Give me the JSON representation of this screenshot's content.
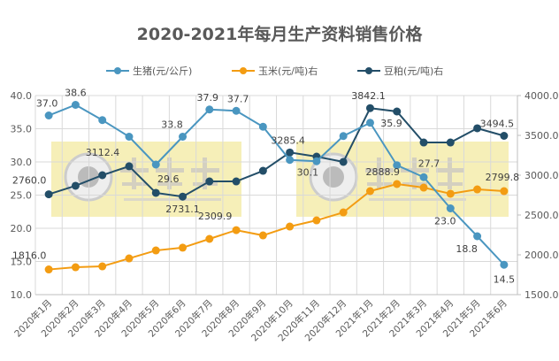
{
  "chart_data": {
    "type": "line",
    "title": "2020-2021年每月生产资料销售价格",
    "categories": [
      "2020年1月",
      "2020年2月",
      "2020年3月",
      "2020年4月",
      "2020年5月",
      "2020年6月",
      "2020年7月",
      "2020年8月",
      "2020年9月",
      "2020年10月",
      "2020年11月",
      "2020年12月",
      "2021年1月",
      "2021年2月",
      "2021年3月",
      "2021年4月",
      "2021年5月",
      "2021年6月"
    ],
    "y_left": {
      "range": [
        10,
        40
      ],
      "ticks": [
        "10.0",
        "15.0",
        "20.0",
        "25.0",
        "30.0",
        "35.0",
        "40.0"
      ]
    },
    "y_right": {
      "range": [
        1500,
        4000
      ],
      "ticks": [
        "1500.0",
        "2000.0",
        "2500.0",
        "3000.0",
        "3500.0",
        "4000.0"
      ]
    },
    "grid": true,
    "legend_position": "top",
    "series": [
      {
        "name": "生猪(元/公斤)",
        "axis": "left",
        "color": "#4a96c0",
        "values": [
          37.0,
          38.6,
          36.3,
          33.8,
          29.6,
          33.8,
          37.9,
          37.7,
          35.3,
          30.3,
          30.1,
          33.9,
          35.9,
          29.5,
          27.7,
          23.0,
          18.8,
          14.5
        ],
        "labeled_points": [
          0,
          1,
          4,
          5,
          6,
          7,
          10,
          12,
          14,
          15,
          16,
          17
        ]
      },
      {
        "name": "玉米(元/吨)右",
        "axis": "right",
        "color": "#f39c12",
        "values": [
          1816.0,
          1844,
          1855,
          1955,
          2055,
          2090,
          2200,
          2309.9,
          2244,
          2355,
          2433,
          2533,
          2800,
          2888.9,
          2844,
          2767,
          2822,
          2799.8
        ],
        "labeled_points": [
          0,
          7,
          13,
          17
        ]
      },
      {
        "name": "豆粕(元/吨)右",
        "axis": "right",
        "color": "#234e68",
        "values": [
          2760.0,
          2867,
          3000,
          3112.4,
          2778,
          2731.1,
          2922,
          2922,
          3055,
          3285.4,
          3233,
          3167,
          3842.1,
          3800,
          3411,
          3411,
          3589,
          3494.5
        ],
        "labeled_points": [
          0,
          3,
          5,
          9,
          12,
          17
        ]
      }
    ]
  },
  "watermark": {
    "text": "大畜牧",
    "url": "www.dxumu.com",
    "color": "#f3eaa0"
  }
}
